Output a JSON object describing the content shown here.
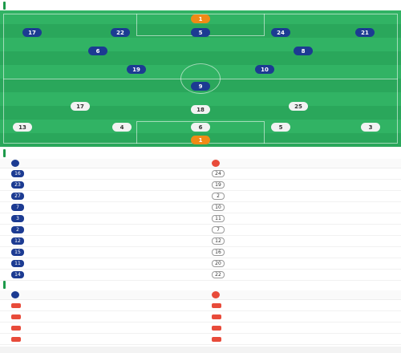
{
  "starting": {
    "title": "",
    "subtitle": "",
    "home_label": "",
    "away_label": "",
    "home_formation": "",
    "away_formation": "",
    "home_players": [
      {
        "number": "1",
        "name": "",
        "rating": "",
        "gk": true
      },
      {
        "number": "17",
        "name": "",
        "rating": ""
      },
      {
        "number": "22",
        "name": "",
        "rating": ""
      },
      {
        "number": "5",
        "name": "",
        "rating": ""
      },
      {
        "number": "24",
        "name": "",
        "rating": ""
      },
      {
        "number": "21",
        "name": "",
        "rating": ""
      },
      {
        "number": "6",
        "name": "",
        "rating": ""
      },
      {
        "number": "8",
        "name": "",
        "rating": ""
      },
      {
        "number": "19",
        "name": "",
        "rating": ""
      },
      {
        "number": "10",
        "name": "",
        "rating": ""
      },
      {
        "number": "9",
        "name": "",
        "rating": ""
      }
    ],
    "away_players": [
      {
        "number": "17",
        "name": "",
        "rating": ""
      },
      {
        "number": "25",
        "name": "",
        "rating": ""
      },
      {
        "number": "18",
        "name": "",
        "rating": ""
      },
      {
        "number": "13",
        "name": "",
        "rating": ""
      },
      {
        "number": "4",
        "name": "",
        "rating": ""
      },
      {
        "number": "6",
        "name": "",
        "rating": ""
      },
      {
        "number": "5",
        "name": "",
        "rating": ""
      },
      {
        "number": "3",
        "name": "",
        "rating": ""
      },
      {
        "number": "1",
        "name": "",
        "rating": "",
        "gk": true
      }
    ]
  },
  "subs": {
    "title": "",
    "home_team": "",
    "away_team": "",
    "home": [
      {
        "number": "16",
        "name": "",
        "pos": "",
        "time": ""
      },
      {
        "number": "23",
        "name": "",
        "pos": "",
        "time": ""
      },
      {
        "number": "27",
        "name": "",
        "pos": "",
        "time": ""
      },
      {
        "number": "7",
        "name": "",
        "pos": "",
        "time": ""
      },
      {
        "number": "3",
        "name": "",
        "pos": "",
        "time": ""
      },
      {
        "number": "2",
        "name": "",
        "pos": "",
        "time": ""
      },
      {
        "number": "12",
        "name": "",
        "pos": "",
        "time": ""
      },
      {
        "number": "15",
        "name": "",
        "pos": "",
        "time": ""
      },
      {
        "number": "11",
        "name": "",
        "pos": "",
        "time": ""
      },
      {
        "number": "14",
        "name": "",
        "pos": "",
        "time": ""
      }
    ],
    "away": [
      {
        "number": "24",
        "name": "",
        "pos": "",
        "time": ""
      },
      {
        "number": "19",
        "name": "",
        "pos": "",
        "time": ""
      },
      {
        "number": "2",
        "name": "",
        "pos": "",
        "time": ""
      },
      {
        "number": "10",
        "name": "",
        "pos": "",
        "time": ""
      },
      {
        "number": "11",
        "name": "",
        "pos": "",
        "time": ""
      },
      {
        "number": "7",
        "name": "",
        "pos": "",
        "time": ""
      },
      {
        "number": "12",
        "name": "",
        "pos": "",
        "time": ""
      },
      {
        "number": "16",
        "name": "",
        "pos": "",
        "time": ""
      },
      {
        "number": "20",
        "name": "",
        "pos": "",
        "time": ""
      },
      {
        "number": "22",
        "name": "",
        "pos": "",
        "time": ""
      }
    ]
  },
  "injuries": {
    "title": "",
    "home_team": "",
    "away_team": "",
    "home": [
      {
        "name": "",
        "reason": ""
      },
      {
        "name": "",
        "reason": ""
      },
      {
        "name": "",
        "reason": ""
      },
      {
        "name": "",
        "reason": ""
      }
    ],
    "away": [
      {
        "name": "",
        "reason": ""
      },
      {
        "name": "",
        "reason": ""
      },
      {
        "name": "",
        "reason": ""
      },
      {
        "name": "",
        "reason": ""
      },
      {
        "name": "",
        "reason": ""
      }
    ]
  }
}
